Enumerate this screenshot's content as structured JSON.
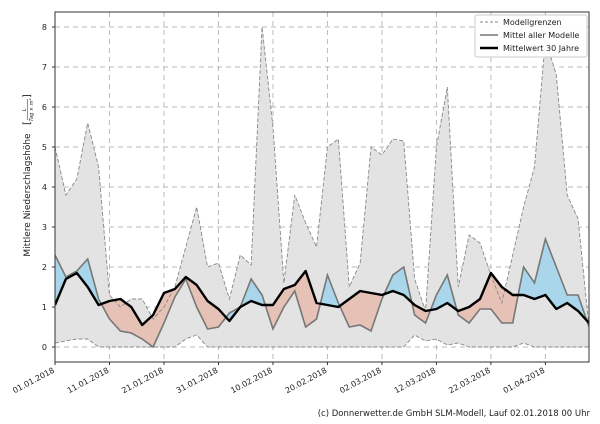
{
  "chart_data": {
    "type": "area",
    "title": "",
    "xlabel": "",
    "ylabel": "Mittlere Niederschlagshöhe",
    "ylabel_unit_numerator": "L",
    "ylabel_unit_denominator": "Tag × m²",
    "ylim": [
      -0.375,
      8.375
    ],
    "xlim": [
      "01.01.2018",
      "09.04.2018"
    ],
    "grid": true,
    "legend_position": "top-right",
    "x_ticks": [
      "01.01.2018",
      "11.01.2018",
      "21.01.2018",
      "31.01.2018",
      "10.02.2018",
      "20.02.2018",
      "02.03.2018",
      "12.03.2018",
      "22.03.2018",
      "01.04.2018"
    ],
    "y_ticks": [
      0,
      1,
      2,
      3,
      4,
      5,
      6,
      7,
      8
    ],
    "x": [
      "01.01.2018",
      "03.01.2018",
      "05.01.2018",
      "07.01.2018",
      "09.01.2018",
      "11.01.2018",
      "13.01.2018",
      "15.01.2018",
      "17.01.2018",
      "19.01.2018",
      "21.01.2018",
      "23.01.2018",
      "25.01.2018",
      "27.01.2018",
      "29.01.2018",
      "31.01.2018",
      "02.02.2018",
      "04.02.2018",
      "06.02.2018",
      "08.02.2018",
      "10.02.2018",
      "12.02.2018",
      "14.02.2018",
      "16.02.2018",
      "18.02.2018",
      "20.02.2018",
      "22.02.2018",
      "24.02.2018",
      "26.02.2018",
      "28.02.2018",
      "02.03.2018",
      "04.03.2018",
      "06.03.2018",
      "08.03.2018",
      "10.03.2018",
      "12.03.2018",
      "14.03.2018",
      "16.03.2018",
      "18.03.2018",
      "20.03.2018",
      "22.03.2018",
      "24.03.2018",
      "26.03.2018",
      "28.03.2018",
      "30.03.2018",
      "01.04.2018",
      "03.04.2018",
      "05.04.2018",
      "07.04.2018",
      "09.04.2018"
    ],
    "series": [
      {
        "name": "Modellgrenzen",
        "role": "upper",
        "style": "dashed",
        "color": "#888888",
        "values": [
          5.0,
          3.8,
          4.2,
          5.6,
          4.5,
          1.3,
          1.0,
          1.2,
          1.2,
          0.7,
          1.0,
          1.5,
          2.5,
          3.5,
          2.0,
          2.1,
          1.2,
          2.3,
          2.05,
          8.0,
          5.5,
          1.6,
          3.8,
          3.1,
          2.5,
          5.0,
          5.2,
          1.5,
          2.1,
          5.0,
          4.8,
          5.2,
          5.15,
          1.7,
          0.9,
          5.0,
          6.5,
          1.5,
          2.8,
          2.6,
          1.8,
          1.1,
          2.3,
          3.5,
          4.5,
          7.7,
          6.8,
          3.8,
          3.2,
          0.5
        ]
      },
      {
        "name": "Modellgrenzen",
        "role": "lower",
        "style": "dashed",
        "color": "#888888",
        "values": [
          0.1,
          0.15,
          0.2,
          0.2,
          0.0,
          0,
          0,
          0,
          0,
          0,
          0,
          0,
          0.2,
          0.3,
          0,
          0,
          0,
          0,
          0,
          0,
          0,
          0,
          0,
          0,
          0,
          0,
          0,
          0,
          0,
          0,
          0,
          0,
          0,
          0.3,
          0.15,
          0.2,
          0.05,
          0.1,
          0,
          0,
          0,
          0,
          0,
          0.1,
          0,
          0,
          0,
          0,
          0,
          0
        ]
      },
      {
        "name": "Mittel aller Modelle",
        "style": "solid",
        "color": "#777777",
        "values": [
          2.3,
          1.75,
          1.9,
          2.2,
          1.2,
          0.7,
          0.4,
          0.35,
          0.2,
          0.0,
          0.6,
          1.25,
          1.7,
          1.0,
          0.45,
          0.5,
          0.85,
          1.0,
          1.7,
          1.3,
          0.45,
          1.0,
          1.4,
          0.5,
          0.7,
          1.8,
          1.1,
          0.5,
          0.55,
          0.4,
          1.2,
          1.8,
          2.0,
          0.8,
          0.6,
          1.3,
          1.8,
          0.8,
          0.6,
          0.95,
          0.95,
          0.6,
          0.6,
          2.0,
          1.6,
          2.7,
          2.0,
          1.3,
          1.3,
          0.5
        ]
      },
      {
        "name": "Mittelwert 30 Jahre",
        "style": "bold",
        "color": "#000000",
        "values": [
          1.05,
          1.7,
          1.85,
          1.5,
          1.05,
          1.15,
          1.2,
          1.0,
          0.55,
          0.8,
          1.35,
          1.45,
          1.75,
          1.55,
          1.15,
          0.95,
          0.65,
          1.0,
          1.15,
          1.05,
          1.05,
          1.45,
          1.55,
          1.9,
          1.1,
          1.05,
          1.0,
          1.2,
          1.4,
          1.35,
          1.3,
          1.4,
          1.3,
          1.05,
          0.9,
          0.95,
          1.1,
          0.9,
          1.0,
          1.2,
          1.85,
          1.5,
          1.3,
          1.3,
          1.2,
          1.3,
          0.95,
          1.1,
          0.9,
          0.6
        ]
      }
    ],
    "colors": {
      "range_fill": "#e3e3e3",
      "above_fill": "#a9d6ea",
      "below_fill": "#e6c1b5"
    }
  },
  "footer": "(c) Donnerwetter.de GmbH SLM-Modell, Lauf 02.01.2018 00 Uhr"
}
